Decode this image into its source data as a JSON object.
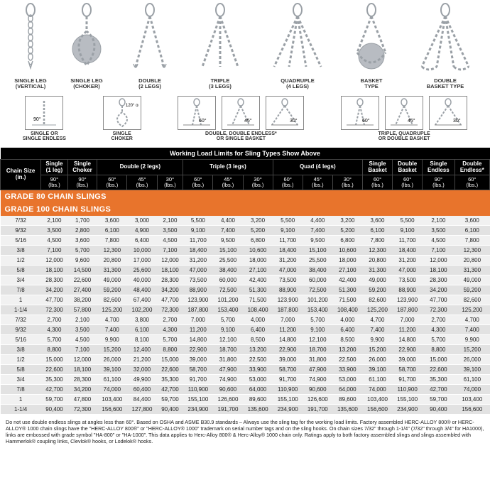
{
  "diagrams_top": [
    {
      "label": "SINGLE LEG\n(VERTICAL)"
    },
    {
      "label": "SINGLE LEG\n(CHOKER)"
    },
    {
      "label": "DOUBLE\n(2 LEGS)"
    },
    {
      "label": "TRIPLE\n(3 LEGS)"
    },
    {
      "label": "QUADRUPLE\n(4 LEGS)"
    },
    {
      "label": "BASKET\nTYPE"
    },
    {
      "label": "DOUBLE\nBASKET TYPE"
    }
  ],
  "angle_groups": [
    {
      "boxes": [
        {
          "a": "90°"
        }
      ],
      "caption": "SINGLE OR\nSINGLE ENDLESS"
    },
    {
      "boxes": [
        {
          "a": "120°\nor\ngreater"
        }
      ],
      "caption": "SINGLE\nCHOKER"
    },
    {
      "boxes": [
        {
          "a": "60°"
        },
        {
          "a": "45°"
        },
        {
          "a": "30°"
        }
      ],
      "caption": "DOUBLE, DOUBLE ENDLESS*\nOR SINGLE BASKET"
    },
    {
      "boxes": [
        {
          "a": "60°"
        },
        {
          "a": "45°"
        },
        {
          "a": "30°"
        }
      ],
      "caption": "TRIPLE, QUADRUPLE\nOR DOUBLE BASKET"
    }
  ],
  "table": {
    "title": "Working Load Limits for Sling Types Show Above",
    "group_headers": [
      {
        "label": "Chain Size\n(in.)",
        "span": 1
      },
      {
        "label": "Single\n(1 leg)",
        "span": 1
      },
      {
        "label": "Single\nChoker",
        "span": 1
      },
      {
        "label": "Double (2 legs)",
        "span": 3
      },
      {
        "label": "Triple (3 legs)",
        "span": 3
      },
      {
        "label": "Quad (4 legs)",
        "span": 3
      },
      {
        "label": "Single\nBasket",
        "span": 1
      },
      {
        "label": "Double\nBasket",
        "span": 1
      },
      {
        "label": "Single\nEndless",
        "span": 1
      },
      {
        "label": "Double\nEndless*",
        "span": 1
      }
    ],
    "angle_headers": [
      "",
      "90°\n(lbs.)",
      "90°\n(lbs.)",
      "60°\n(lbs.)",
      "45°\n(lbs.)",
      "30°\n(lbs.)",
      "60°\n(lbs.)",
      "45°\n(lbs.)",
      "30°\n(lbs.)",
      "60°\n(lbs.)",
      "45°\n(lbs.)",
      "30°\n(lbs.)",
      "60°\n(lbs.)",
      "60°\n(lbs.)",
      "90°\n(lbs.)",
      "60°\n(lbs.)"
    ],
    "sections": [
      {
        "title": "GRADE 80 CHAIN SLINGS",
        "rows": [
          [
            "7/32",
            "2,100",
            "1,700",
            "3,600",
            "3,000",
            "2,100",
            "5,500",
            "4,400",
            "3,200",
            "5,500",
            "4,400",
            "3,200",
            "3,600",
            "5,500",
            "2,100",
            "3,600"
          ],
          [
            "9/32",
            "3,500",
            "2,800",
            "6,100",
            "4,900",
            "3,500",
            "9,100",
            "7,400",
            "5,200",
            "9,100",
            "7,400",
            "5,200",
            "6,100",
            "9,100",
            "3,500",
            "6,100"
          ],
          [
            "5/16",
            "4,500",
            "3,600",
            "7,800",
            "6,400",
            "4,500",
            "11,700",
            "9,500",
            "6,800",
            "11,700",
            "9,500",
            "6,800",
            "7,800",
            "11,700",
            "4,500",
            "7,800"
          ],
          [
            "3/8",
            "7,100",
            "5,700",
            "12,300",
            "10,000",
            "7,100",
            "18,400",
            "15,100",
            "10,600",
            "18,400",
            "15,100",
            "10,600",
            "12,300",
            "18,400",
            "7,100",
            "12,300"
          ],
          [
            "1/2",
            "12,000",
            "9,600",
            "20,800",
            "17,000",
            "12,000",
            "31,200",
            "25,500",
            "18,000",
            "31,200",
            "25,500",
            "18,000",
            "20,800",
            "31,200",
            "12,000",
            "20,800"
          ],
          [
            "5/8",
            "18,100",
            "14,500",
            "31,300",
            "25,600",
            "18,100",
            "47,000",
            "38,400",
            "27,100",
            "47,000",
            "38,400",
            "27,100",
            "31,300",
            "47,000",
            "18,100",
            "31,300"
          ],
          [
            "3/4",
            "28,300",
            "22,600",
            "49,000",
            "40,000",
            "28,300",
            "73,500",
            "60,000",
            "42,400",
            "73,500",
            "60,000",
            "42,400",
            "49,000",
            "73,500",
            "28,300",
            "49,000"
          ],
          [
            "7/8",
            "34,200",
            "27,400",
            "59,200",
            "48,400",
            "34,200",
            "88,900",
            "72,500",
            "51,300",
            "88,900",
            "72,500",
            "51,300",
            "59,200",
            "88,900",
            "34,200",
            "59,200"
          ],
          [
            "1",
            "47,700",
            "38,200",
            "82,600",
            "67,400",
            "47,700",
            "123,900",
            "101,200",
            "71,500",
            "123,900",
            "101,200",
            "71,500",
            "82,600",
            "123,900",
            "47,700",
            "82,600"
          ],
          [
            "1-1/4",
            "72,300",
            "57,800",
            "125,200",
            "102,200",
            "72,300",
            "187,800",
            "153,400",
            "108,400",
            "187,800",
            "153,400",
            "108,400",
            "125,200",
            "187,800",
            "72,300",
            "125,200"
          ]
        ]
      },
      {
        "title": "GRADE 100 CHAIN SLINGS",
        "rows": [
          [
            "7/32",
            "2,700",
            "2,100",
            "4,700",
            "3,800",
            "2,700",
            "7,000",
            "5,700",
            "4,000",
            "7,000",
            "5,700",
            "4,000",
            "4,700",
            "7,000",
            "2,700",
            "4,700"
          ],
          [
            "9/32",
            "4,300",
            "3,500",
            "7,400",
            "6,100",
            "4,300",
            "11,200",
            "9,100",
            "6,400",
            "11,200",
            "9,100",
            "6,400",
            "7,400",
            "11,200",
            "4,300",
            "7,400"
          ],
          [
            "5/16",
            "5,700",
            "4,500",
            "9,900",
            "8,100",
            "5,700",
            "14,800",
            "12,100",
            "8,500",
            "14,800",
            "12,100",
            "8,500",
            "9,900",
            "14,800",
            "5,700",
            "9,900"
          ],
          [
            "3/8",
            "8,800",
            "7,100",
            "15,200",
            "12,400",
            "8,800",
            "22,900",
            "18,700",
            "13,200",
            "22,900",
            "18,700",
            "13,200",
            "15,200",
            "22,900",
            "8,800",
            "15,200"
          ],
          [
            "1/2",
            "15,000",
            "12,000",
            "26,000",
            "21,200",
            "15,000",
            "39,000",
            "31,800",
            "22,500",
            "39,000",
            "31,800",
            "22,500",
            "26,000",
            "39,000",
            "15,000",
            "26,000"
          ],
          [
            "5/8",
            "22,600",
            "18,100",
            "39,100",
            "32,000",
            "22,600",
            "58,700",
            "47,900",
            "33,900",
            "58,700",
            "47,900",
            "33,900",
            "39,100",
            "58,700",
            "22,600",
            "39,100"
          ],
          [
            "3/4",
            "35,300",
            "28,300",
            "61,100",
            "49,900",
            "35,300",
            "91,700",
            "74,900",
            "53,000",
            "91,700",
            "74,900",
            "53,000",
            "61,100",
            "91,700",
            "35,300",
            "61,100"
          ],
          [
            "7/8",
            "42,700",
            "34,200",
            "74,000",
            "60,400",
            "42,700",
            "110,900",
            "90,600",
            "64,000",
            "110,900",
            "90,600",
            "64,000",
            "74,000",
            "110,900",
            "42,700",
            "74,000"
          ],
          [
            "1",
            "59,700",
            "47,800",
            "103,400",
            "84,400",
            "59,700",
            "155,100",
            "126,600",
            "89,600",
            "155,100",
            "126,600",
            "89,600",
            "103,400",
            "155,100",
            "59,700",
            "103,400"
          ],
          [
            "1-1/4",
            "90,400",
            "72,300",
            "156,600",
            "127,800",
            "90,400",
            "234,900",
            "191,700",
            "135,600",
            "234,900",
            "191,700",
            "135,600",
            "156,600",
            "234,900",
            "90,400",
            "156,600"
          ]
        ]
      }
    ]
  },
  "footnote": "Do not use double endless slings at angles less than 60°. Based on OSHA and ASME B30.9 standards – Always use the sling tag for the working load limits. Factory assembled HERC-ALLOY 800® or HERC-ALLOY® 1000 chain slings have the \"HERC-ALLOY 800®\" or \"HERC-ALLOY® 1000\" trademark on serial number tags and on the sling hooks. On chain sizes 7/32\" through 1-1/4\" (7/32\" through 3/4\" for HA1000), links are embossed with grade symbol \"HA-800\" or \"HA-1000\". This data applies to Herc-Alloy 800® & Herc-Alloy® 1000 chain only. Ratings apply to both factory assembled slings and slings assembled with Hammerlok® coupling links, Clevlok® hooks, or Lodelok® hooks.",
  "colors": {
    "header_bg": "#000000",
    "header_fg": "#ffffff",
    "grade_bg": "#e8742c",
    "row_odd": "#f1f1f1",
    "row_even": "#e2e2e2",
    "ink": "#202020",
    "chain": "#9aa0a6"
  }
}
